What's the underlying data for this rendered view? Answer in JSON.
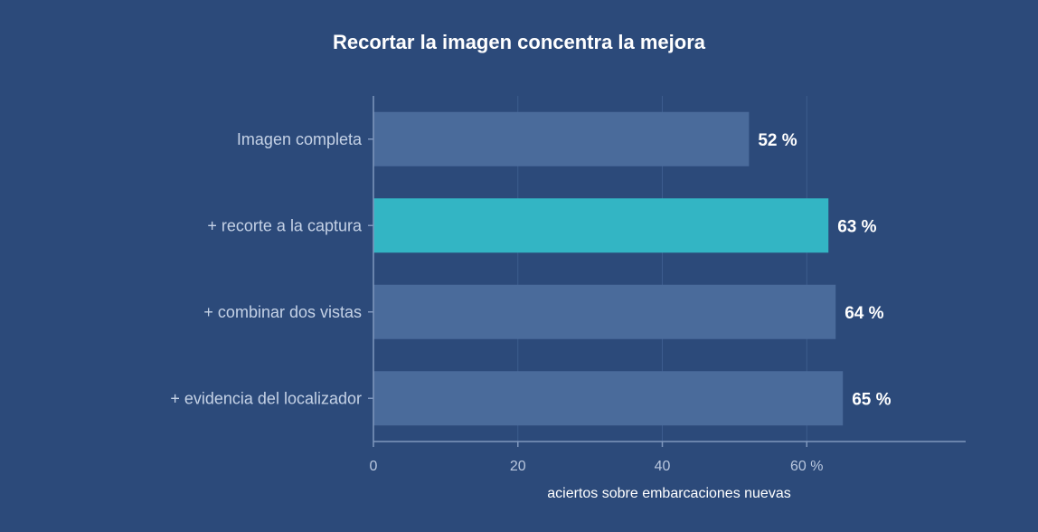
{
  "chart_data": {
    "type": "bar",
    "orientation": "horizontal",
    "title": "Recortar la imagen concentra la mejora",
    "xlabel": "aciertos sobre embarcaciones nuevas",
    "categories": [
      "Imagen completa",
      "+ recorte a la captura",
      "+ combinar dos vistas",
      "+ evidencia del localizador"
    ],
    "values": [
      52,
      63,
      64,
      65
    ],
    "data_labels": [
      "52 %",
      "63 %",
      "64 %",
      "65 %"
    ],
    "highlight_index": 1,
    "xlim": [
      0,
      82
    ],
    "xticks": [
      0,
      20,
      40,
      60
    ],
    "xtick_labels": [
      "0",
      "20",
      "40",
      "60 %"
    ],
    "grid": "vertical",
    "colors": {
      "background": "#2c4a7a",
      "bar": "#4a6b9b",
      "highlight": "#33b5c4"
    }
  }
}
